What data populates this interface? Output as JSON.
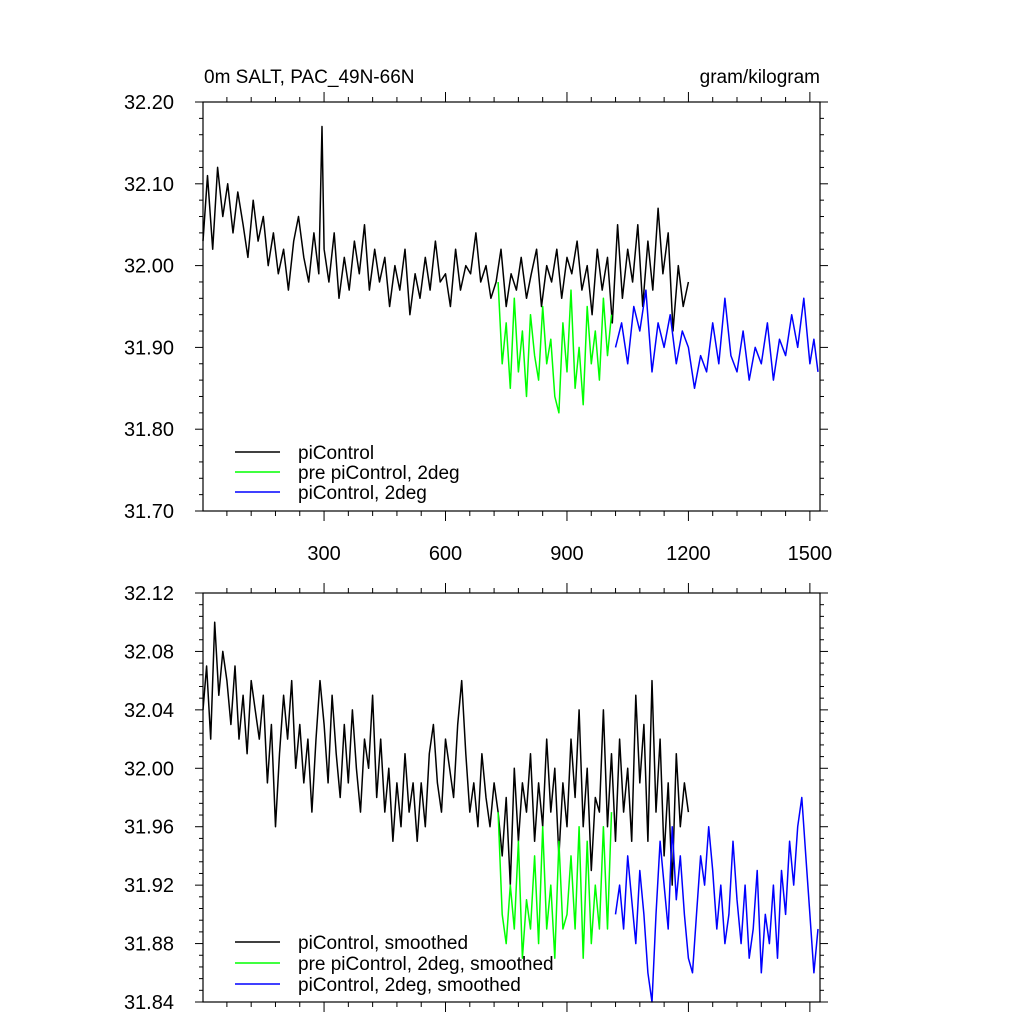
{
  "colors": {
    "black": "#000000",
    "green": "#00ff00",
    "blue": "#0000ff"
  },
  "chart_data": [
    {
      "type": "line",
      "title": "0m SALT, PAC_49N-66N",
      "title_right": "gram/kilogram",
      "xlim": [
        1,
        1525
      ],
      "ylim": [
        31.7,
        32.2
      ],
      "xticks": [
        300,
        600,
        900,
        1200,
        1500
      ],
      "xtick_labels": [
        "300",
        "600",
        "900",
        "1200",
        "1500"
      ],
      "yticks": [
        31.7,
        31.8,
        31.9,
        32.0,
        32.1,
        32.2
      ],
      "ytick_labels": [
        "31.70",
        "31.80",
        "31.90",
        "32.00",
        "32.10",
        "32.20"
      ],
      "legend_position": "bottom-left",
      "grid": false,
      "series": [
        {
          "name": "piControl",
          "color": "#000000",
          "x": [
            1,
            12,
            25,
            37,
            50,
            62,
            75,
            87,
            100,
            112,
            125,
            137,
            150,
            162,
            175,
            187,
            200,
            212,
            225,
            237,
            250,
            262,
            275,
            287,
            295,
            300,
            312,
            325,
            337,
            350,
            362,
            375,
            387,
            400,
            412,
            425,
            437,
            450,
            462,
            475,
            487,
            500,
            512,
            525,
            537,
            550,
            562,
            575,
            587,
            600,
            612,
            625,
            637,
            650,
            662,
            675,
            687,
            700,
            712,
            725,
            737,
            750,
            762,
            775,
            787,
            800,
            812,
            825,
            837,
            850,
            862,
            875,
            887,
            900,
            912,
            925,
            937,
            950,
            962,
            975,
            987,
            1000,
            1012,
            1025,
            1037,
            1050,
            1062,
            1075,
            1087,
            1100,
            1112,
            1125,
            1137,
            1150,
            1162,
            1175,
            1187,
            1200
          ],
          "y": [
            32.03,
            32.11,
            32.02,
            32.12,
            32.06,
            32.1,
            32.04,
            32.09,
            32.05,
            32.01,
            32.08,
            32.03,
            32.06,
            32.0,
            32.04,
            31.99,
            32.02,
            31.97,
            32.03,
            32.06,
            32.01,
            31.98,
            32.04,
            31.99,
            32.17,
            32.02,
            31.98,
            32.04,
            31.96,
            32.01,
            31.97,
            32.03,
            31.99,
            32.05,
            31.97,
            32.02,
            31.98,
            32.01,
            31.95,
            32.0,
            31.97,
            32.02,
            31.94,
            31.99,
            31.96,
            32.01,
            31.97,
            32.03,
            31.98,
            31.99,
            31.95,
            32.02,
            31.97,
            32.0,
            31.99,
            32.04,
            31.98,
            32.0,
            31.96,
            31.98,
            32.02,
            31.95,
            31.99,
            31.97,
            32.01,
            31.96,
            31.99,
            32.02,
            31.95,
            32.0,
            31.98,
            32.02,
            31.96,
            32.01,
            31.99,
            32.03,
            31.97,
            32.0,
            31.94,
            32.02,
            31.97,
            32.01,
            31.93,
            32.05,
            31.96,
            32.02,
            31.98,
            32.05,
            31.95,
            32.03,
            31.97,
            32.07,
            31.99,
            32.04,
            31.92,
            32.0,
            31.95,
            31.98
          ]
        },
        {
          "name": "pre piControl, 2deg",
          "color": "#00ff00",
          "x": [
            730,
            740,
            750,
            760,
            770,
            780,
            790,
            800,
            810,
            820,
            830,
            840,
            850,
            860,
            870,
            880,
            890,
            900,
            910,
            920,
            930,
            940,
            950,
            960,
            970,
            980,
            990,
            1000,
            1010
          ],
          "y": [
            31.98,
            31.88,
            31.93,
            31.85,
            31.96,
            31.87,
            31.92,
            31.84,
            31.94,
            31.89,
            31.86,
            31.95,
            31.88,
            31.91,
            31.84,
            31.82,
            31.93,
            31.87,
            31.97,
            31.85,
            31.9,
            31.83,
            31.95,
            31.88,
            31.92,
            31.86,
            31.96,
            31.89,
            31.94
          ]
        },
        {
          "name": "piControl, 2deg",
          "color": "#0000ff",
          "x": [
            1020,
            1035,
            1050,
            1065,
            1080,
            1095,
            1110,
            1125,
            1140,
            1155,
            1170,
            1185,
            1200,
            1215,
            1230,
            1245,
            1260,
            1275,
            1290,
            1305,
            1320,
            1335,
            1350,
            1365,
            1380,
            1395,
            1410,
            1425,
            1440,
            1455,
            1470,
            1485,
            1500,
            1510,
            1520
          ],
          "y": [
            31.9,
            31.93,
            31.88,
            31.95,
            31.92,
            31.97,
            31.87,
            31.93,
            31.9,
            31.94,
            31.88,
            31.92,
            31.9,
            31.85,
            31.89,
            31.87,
            31.93,
            31.88,
            31.96,
            31.89,
            31.87,
            31.92,
            31.86,
            31.9,
            31.88,
            31.93,
            31.86,
            31.91,
            31.89,
            31.94,
            31.9,
            31.96,
            31.88,
            31.91,
            31.87
          ]
        }
      ]
    },
    {
      "type": "line",
      "title": "",
      "xlim": [
        1,
        1525
      ],
      "ylim": [
        31.84,
        32.12
      ],
      "xticks": [
        300,
        600,
        900,
        1200,
        1500
      ],
      "yticks": [
        31.84,
        31.88,
        31.92,
        31.96,
        32.0,
        32.04,
        32.08,
        32.12
      ],
      "ytick_labels": [
        "31.84",
        "31.88",
        "31.92",
        "31.96",
        "32.00",
        "32.04",
        "32.08",
        "32.12"
      ],
      "legend_position": "bottom-left",
      "grid": false,
      "series": [
        {
          "name": "piControl, smoothed",
          "color": "#000000",
          "x": [
            1,
            10,
            20,
            30,
            40,
            50,
            60,
            70,
            80,
            90,
            100,
            110,
            120,
            130,
            140,
            150,
            160,
            170,
            180,
            190,
            200,
            210,
            220,
            230,
            240,
            250,
            260,
            270,
            280,
            290,
            300,
            310,
            320,
            330,
            340,
            350,
            360,
            370,
            380,
            390,
            400,
            410,
            420,
            430,
            440,
            450,
            460,
            470,
            480,
            490,
            500,
            510,
            520,
            530,
            540,
            550,
            560,
            570,
            580,
            590,
            600,
            610,
            620,
            630,
            640,
            650,
            660,
            670,
            680,
            690,
            700,
            710,
            720,
            730,
            740,
            750,
            760,
            770,
            780,
            790,
            800,
            810,
            820,
            830,
            840,
            850,
            860,
            870,
            880,
            890,
            900,
            910,
            920,
            930,
            940,
            950,
            960,
            970,
            980,
            990,
            1000,
            1010,
            1020,
            1030,
            1040,
            1050,
            1060,
            1070,
            1080,
            1090,
            1100,
            1110,
            1120,
            1130,
            1140,
            1150,
            1160,
            1170,
            1180,
            1190,
            1200
          ],
          "y": [
            32.04,
            32.07,
            32.02,
            32.1,
            32.05,
            32.08,
            32.06,
            32.03,
            32.07,
            32.02,
            32.05,
            32.01,
            32.06,
            32.04,
            32.02,
            32.05,
            31.99,
            32.03,
            31.96,
            32.01,
            32.05,
            32.02,
            32.06,
            32.0,
            32.03,
            31.99,
            32.02,
            31.97,
            32.02,
            32.06,
            32.03,
            31.99,
            32.05,
            32.01,
            31.98,
            32.03,
            31.99,
            32.04,
            32.0,
            31.97,
            32.02,
            32.0,
            32.05,
            31.98,
            32.02,
            31.97,
            32.0,
            31.95,
            31.99,
            31.96,
            32.01,
            31.97,
            31.99,
            31.95,
            31.99,
            31.96,
            32.01,
            32.03,
            31.99,
            31.97,
            32.02,
            32.0,
            31.98,
            32.03,
            32.06,
            32.01,
            31.97,
            31.99,
            31.96,
            32.01,
            31.98,
            31.96,
            31.99,
            31.97,
            31.94,
            31.98,
            31.92,
            32.0,
            31.95,
            31.99,
            31.97,
            32.01,
            31.95,
            31.99,
            31.96,
            32.02,
            31.97,
            32.0,
            31.94,
            31.99,
            31.96,
            32.02,
            31.98,
            32.04,
            31.96,
            32.0,
            31.93,
            31.98,
            31.97,
            32.04,
            31.96,
            32.01,
            31.95,
            32.02,
            31.97,
            32.0,
            31.95,
            32.05,
            31.99,
            32.03,
            31.95,
            32.06,
            31.97,
            32.02,
            31.94,
            31.99,
            31.92,
            32.01,
            31.96,
            31.99,
            31.97
          ]
        },
        {
          "name": "pre piControl, 2deg, smoothed",
          "color": "#00ff00",
          "x": [
            730,
            740,
            750,
            760,
            770,
            780,
            790,
            800,
            810,
            820,
            830,
            840,
            850,
            860,
            870,
            880,
            890,
            900,
            910,
            920,
            930,
            940,
            950,
            960,
            970,
            980,
            990,
            1000,
            1010
          ],
          "y": [
            31.97,
            31.9,
            31.88,
            31.92,
            31.89,
            31.95,
            31.87,
            31.91,
            31.89,
            31.94,
            31.88,
            31.96,
            31.89,
            31.92,
            31.87,
            31.95,
            31.89,
            31.9,
            31.94,
            31.89,
            31.96,
            31.87,
            31.95,
            31.88,
            31.92,
            31.89,
            31.96,
            31.89,
            31.97
          ]
        },
        {
          "name": "piControl, 2deg, smoothed",
          "color": "#0000ff",
          "x": [
            1020,
            1030,
            1040,
            1050,
            1060,
            1070,
            1080,
            1090,
            1100,
            1110,
            1120,
            1130,
            1140,
            1150,
            1160,
            1170,
            1180,
            1190,
            1200,
            1210,
            1220,
            1230,
            1240,
            1250,
            1260,
            1270,
            1280,
            1290,
            1300,
            1310,
            1320,
            1330,
            1340,
            1350,
            1360,
            1370,
            1380,
            1390,
            1400,
            1410,
            1420,
            1430,
            1440,
            1450,
            1460,
            1470,
            1480,
            1490,
            1500,
            1510,
            1520
          ],
          "y": [
            31.9,
            31.92,
            31.89,
            31.94,
            31.91,
            31.88,
            31.93,
            31.9,
            31.86,
            31.84,
            31.9,
            31.95,
            31.92,
            31.89,
            31.96,
            31.91,
            31.94,
            31.9,
            31.87,
            31.86,
            31.9,
            31.94,
            31.92,
            31.96,
            31.93,
            31.89,
            31.92,
            31.88,
            31.9,
            31.95,
            31.91,
            31.88,
            31.92,
            31.87,
            31.89,
            31.93,
            31.86,
            31.9,
            31.88,
            31.92,
            31.87,
            31.93,
            31.9,
            31.95,
            31.92,
            31.96,
            31.98,
            31.94,
            31.9,
            31.86,
            31.89
          ]
        }
      ]
    }
  ]
}
